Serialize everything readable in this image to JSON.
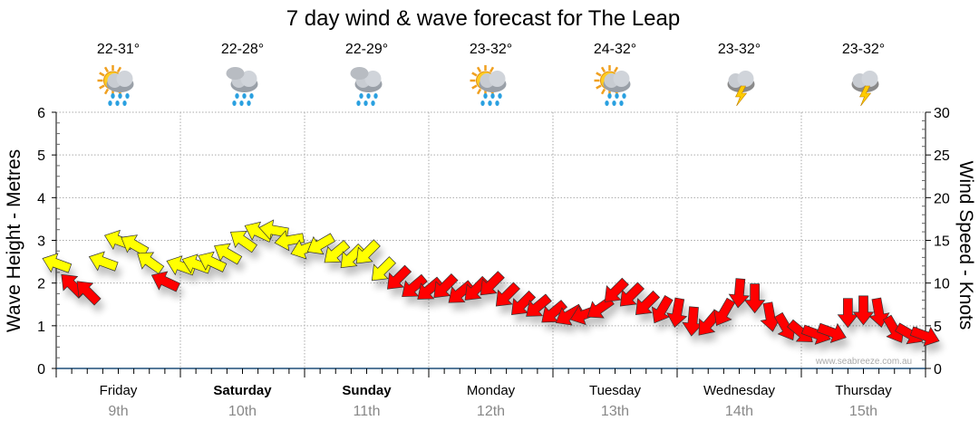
{
  "chart_data": {
    "type": "scatter",
    "title": "7 day wind & wave forecast for The Leap",
    "ylabel_left": "Wave Height - Metres",
    "ylabel_right": "Wind Speed - Knots",
    "ylim_left": [
      0,
      6
    ],
    "ylim_right": [
      0,
      30
    ],
    "yticks_left": [
      "0",
      "1",
      "2",
      "3",
      "4",
      "5",
      "6"
    ],
    "yticks_right": [
      "0",
      "5",
      "10",
      "15",
      "20",
      "25",
      "30"
    ],
    "grid": true,
    "watermark": "www.seabreeze.com.au",
    "colors": {
      "strong": "#ffff00",
      "light": "#ff0000",
      "axis": "#1f4e79"
    },
    "strong_threshold_knots": 11,
    "days": [
      {
        "name": "Friday",
        "date": "9th",
        "temp": "22-31°",
        "weather": "sun-cloud-rain",
        "bold": false
      },
      {
        "name": "Saturday",
        "date": "10th",
        "temp": "22-28°",
        "weather": "rain",
        "bold": true
      },
      {
        "name": "Sunday",
        "date": "11th",
        "temp": "22-29°",
        "weather": "rain",
        "bold": true
      },
      {
        "name": "Monday",
        "date": "12th",
        "temp": "23-32°",
        "weather": "sun-cloud-rain",
        "bold": false
      },
      {
        "name": "Tuesday",
        "date": "13th",
        "temp": "24-32°",
        "weather": "sun-cloud-rain",
        "bold": false
      },
      {
        "name": "Wednesday",
        "date": "14th",
        "temp": "23-32°",
        "weather": "storm",
        "bold": false
      },
      {
        "name": "Thursday",
        "date": "15th",
        "temp": "23-32°",
        "weather": "storm",
        "bold": false
      }
    ],
    "wind": [
      {
        "hour": 0,
        "knots": 12.3,
        "dir": 200
      },
      {
        "hour": 3,
        "knots": 9.8,
        "dir": 225
      },
      {
        "hour": 6,
        "knots": 9.0,
        "dir": 225
      },
      {
        "hour": 9,
        "knots": 12.5,
        "dir": 200
      },
      {
        "hour": 12,
        "knots": 15.0,
        "dir": 200
      },
      {
        "hour": 15,
        "knots": 14.5,
        "dir": 210
      },
      {
        "hour": 18,
        "knots": 12.5,
        "dir": 215
      },
      {
        "hour": 21,
        "knots": 10.2,
        "dir": 205
      },
      {
        "hour": 24,
        "knots": 12.0,
        "dir": 200
      },
      {
        "hour": 27,
        "knots": 12.2,
        "dir": 200
      },
      {
        "hour": 30,
        "knots": 12.5,
        "dir": 205
      },
      {
        "hour": 33,
        "knots": 13.5,
        "dir": 210
      },
      {
        "hour": 36,
        "knots": 15.0,
        "dir": 215
      },
      {
        "hour": 39,
        "knots": 16.0,
        "dir": 205
      },
      {
        "hour": 42,
        "knots": 16.2,
        "dir": 190
      },
      {
        "hour": 45,
        "knots": 15.0,
        "dir": 170
      },
      {
        "hour": 48,
        "knots": 14.0,
        "dir": 160
      },
      {
        "hour": 51,
        "knots": 14.5,
        "dir": 150
      },
      {
        "hour": 54,
        "knots": 13.5,
        "dir": 140
      },
      {
        "hour": 57,
        "knots": 13.0,
        "dir": 135
      },
      {
        "hour": 60,
        "knots": 13.5,
        "dir": 135
      },
      {
        "hour": 63,
        "knots": 11.5,
        "dir": 135
      },
      {
        "hour": 66,
        "knots": 10.5,
        "dir": 135
      },
      {
        "hour": 69,
        "knots": 9.5,
        "dir": 140
      },
      {
        "hour": 72,
        "knots": 9.2,
        "dir": 140
      },
      {
        "hour": 75,
        "knots": 9.5,
        "dir": 135
      },
      {
        "hour": 78,
        "knots": 8.8,
        "dir": 140
      },
      {
        "hour": 81,
        "knots": 9.2,
        "dir": 135
      },
      {
        "hour": 84,
        "knots": 9.8,
        "dir": 135
      },
      {
        "hour": 87,
        "knots": 8.5,
        "dir": 135
      },
      {
        "hour": 90,
        "knots": 7.5,
        "dir": 135
      },
      {
        "hour": 93,
        "knots": 7.2,
        "dir": 140
      },
      {
        "hour": 96,
        "knots": 6.5,
        "dir": 140
      },
      {
        "hour": 99,
        "knots": 6.2,
        "dir": 150
      },
      {
        "hour": 102,
        "knots": 6.3,
        "dir": 160
      },
      {
        "hour": 105,
        "knots": 7.0,
        "dir": 145
      },
      {
        "hour": 108,
        "knots": 9.0,
        "dir": 135
      },
      {
        "hour": 111,
        "knots": 8.5,
        "dir": 135
      },
      {
        "hour": 114,
        "knots": 7.5,
        "dir": 135
      },
      {
        "hour": 117,
        "knots": 6.8,
        "dir": 120
      },
      {
        "hour": 120,
        "knots": 6.5,
        "dir": 100
      },
      {
        "hour": 123,
        "knots": 5.5,
        "dir": 95
      },
      {
        "hour": 126,
        "knots": 5.2,
        "dir": 130
      },
      {
        "hour": 129,
        "knots": 6.5,
        "dir": 120
      },
      {
        "hour": 132,
        "knots": 8.8,
        "dir": 95
      },
      {
        "hour": 135,
        "knots": 8.2,
        "dir": 90
      },
      {
        "hour": 138,
        "knots": 6.0,
        "dir": 80
      },
      {
        "hour": 141,
        "knots": 4.8,
        "dir": 60
      },
      {
        "hour": 144,
        "knots": 4.2,
        "dir": 40
      },
      {
        "hour": 147,
        "knots": 4.0,
        "dir": 20
      },
      {
        "hour": 150,
        "knots": 4.2,
        "dir": 20
      },
      {
        "hour": 153,
        "knots": 6.5,
        "dir": 90
      },
      {
        "hour": 156,
        "knots": 6.8,
        "dir": 90
      },
      {
        "hour": 159,
        "knots": 6.5,
        "dir": 80
      },
      {
        "hour": 162,
        "knots": 4.5,
        "dir": 60
      },
      {
        "hour": 165,
        "knots": 4.0,
        "dir": 30
      },
      {
        "hour": 168,
        "knots": 3.8,
        "dir": 20
      }
    ]
  }
}
